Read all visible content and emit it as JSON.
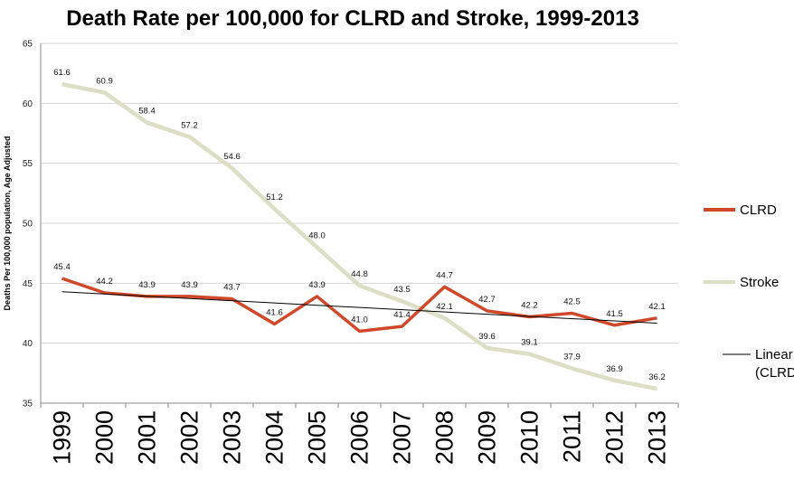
{
  "chart_data": {
    "type": "line",
    "title": "Death Rate per 100,000 for CLRD and Stroke, 1999-2013",
    "ylabel": "Deaths Per 100,000 population, Age Adjusted",
    "xlabel": "",
    "ylim": [
      35,
      65
    ],
    "yticks": [
      "35",
      "40",
      "45",
      "50",
      "55",
      "60",
      "65"
    ],
    "grid": true,
    "legend": "right",
    "categories": [
      "1999",
      "2000",
      "2001",
      "2002",
      "2003",
      "2004",
      "2005",
      "2006",
      "2007",
      "2008",
      "2009",
      "2010",
      "2011",
      "2012",
      "2013"
    ],
    "series": [
      {
        "name": "CLRD",
        "color": "#d0482a",
        "values": [
          45.4,
          44.2,
          43.9,
          43.9,
          43.7,
          41.6,
          43.9,
          41.0,
          41.4,
          44.7,
          42.7,
          42.2,
          42.5,
          41.5,
          42.1
        ],
        "labels": [
          "45.4",
          "44.2",
          "43.9",
          "43.9",
          "43.7",
          "41.6",
          "43.9",
          "41.0",
          "41.4",
          "44.7",
          "42.7",
          "42.2",
          "42.5",
          "41.5",
          "42.1"
        ]
      },
      {
        "name": "Stroke",
        "color": "#dcdec6",
        "values": [
          61.6,
          60.9,
          58.4,
          57.2,
          54.6,
          51.2,
          48.0,
          44.8,
          43.5,
          42.1,
          39.6,
          39.1,
          37.9,
          36.9,
          36.2
        ],
        "labels": [
          "61.6",
          "60.9",
          "58.4",
          "57.2",
          "54.6",
          "51.2",
          "48.0",
          "44.8",
          "43.5",
          "42.1",
          "39.6",
          "39.1",
          "37.9",
          "36.9",
          "36.2"
        ]
      }
    ],
    "trendline": {
      "name": "Linear\n(CLRD)",
      "name_lines": [
        "Linear",
        "(CLRD)"
      ],
      "color": "#000000",
      "of": "CLRD"
    }
  }
}
